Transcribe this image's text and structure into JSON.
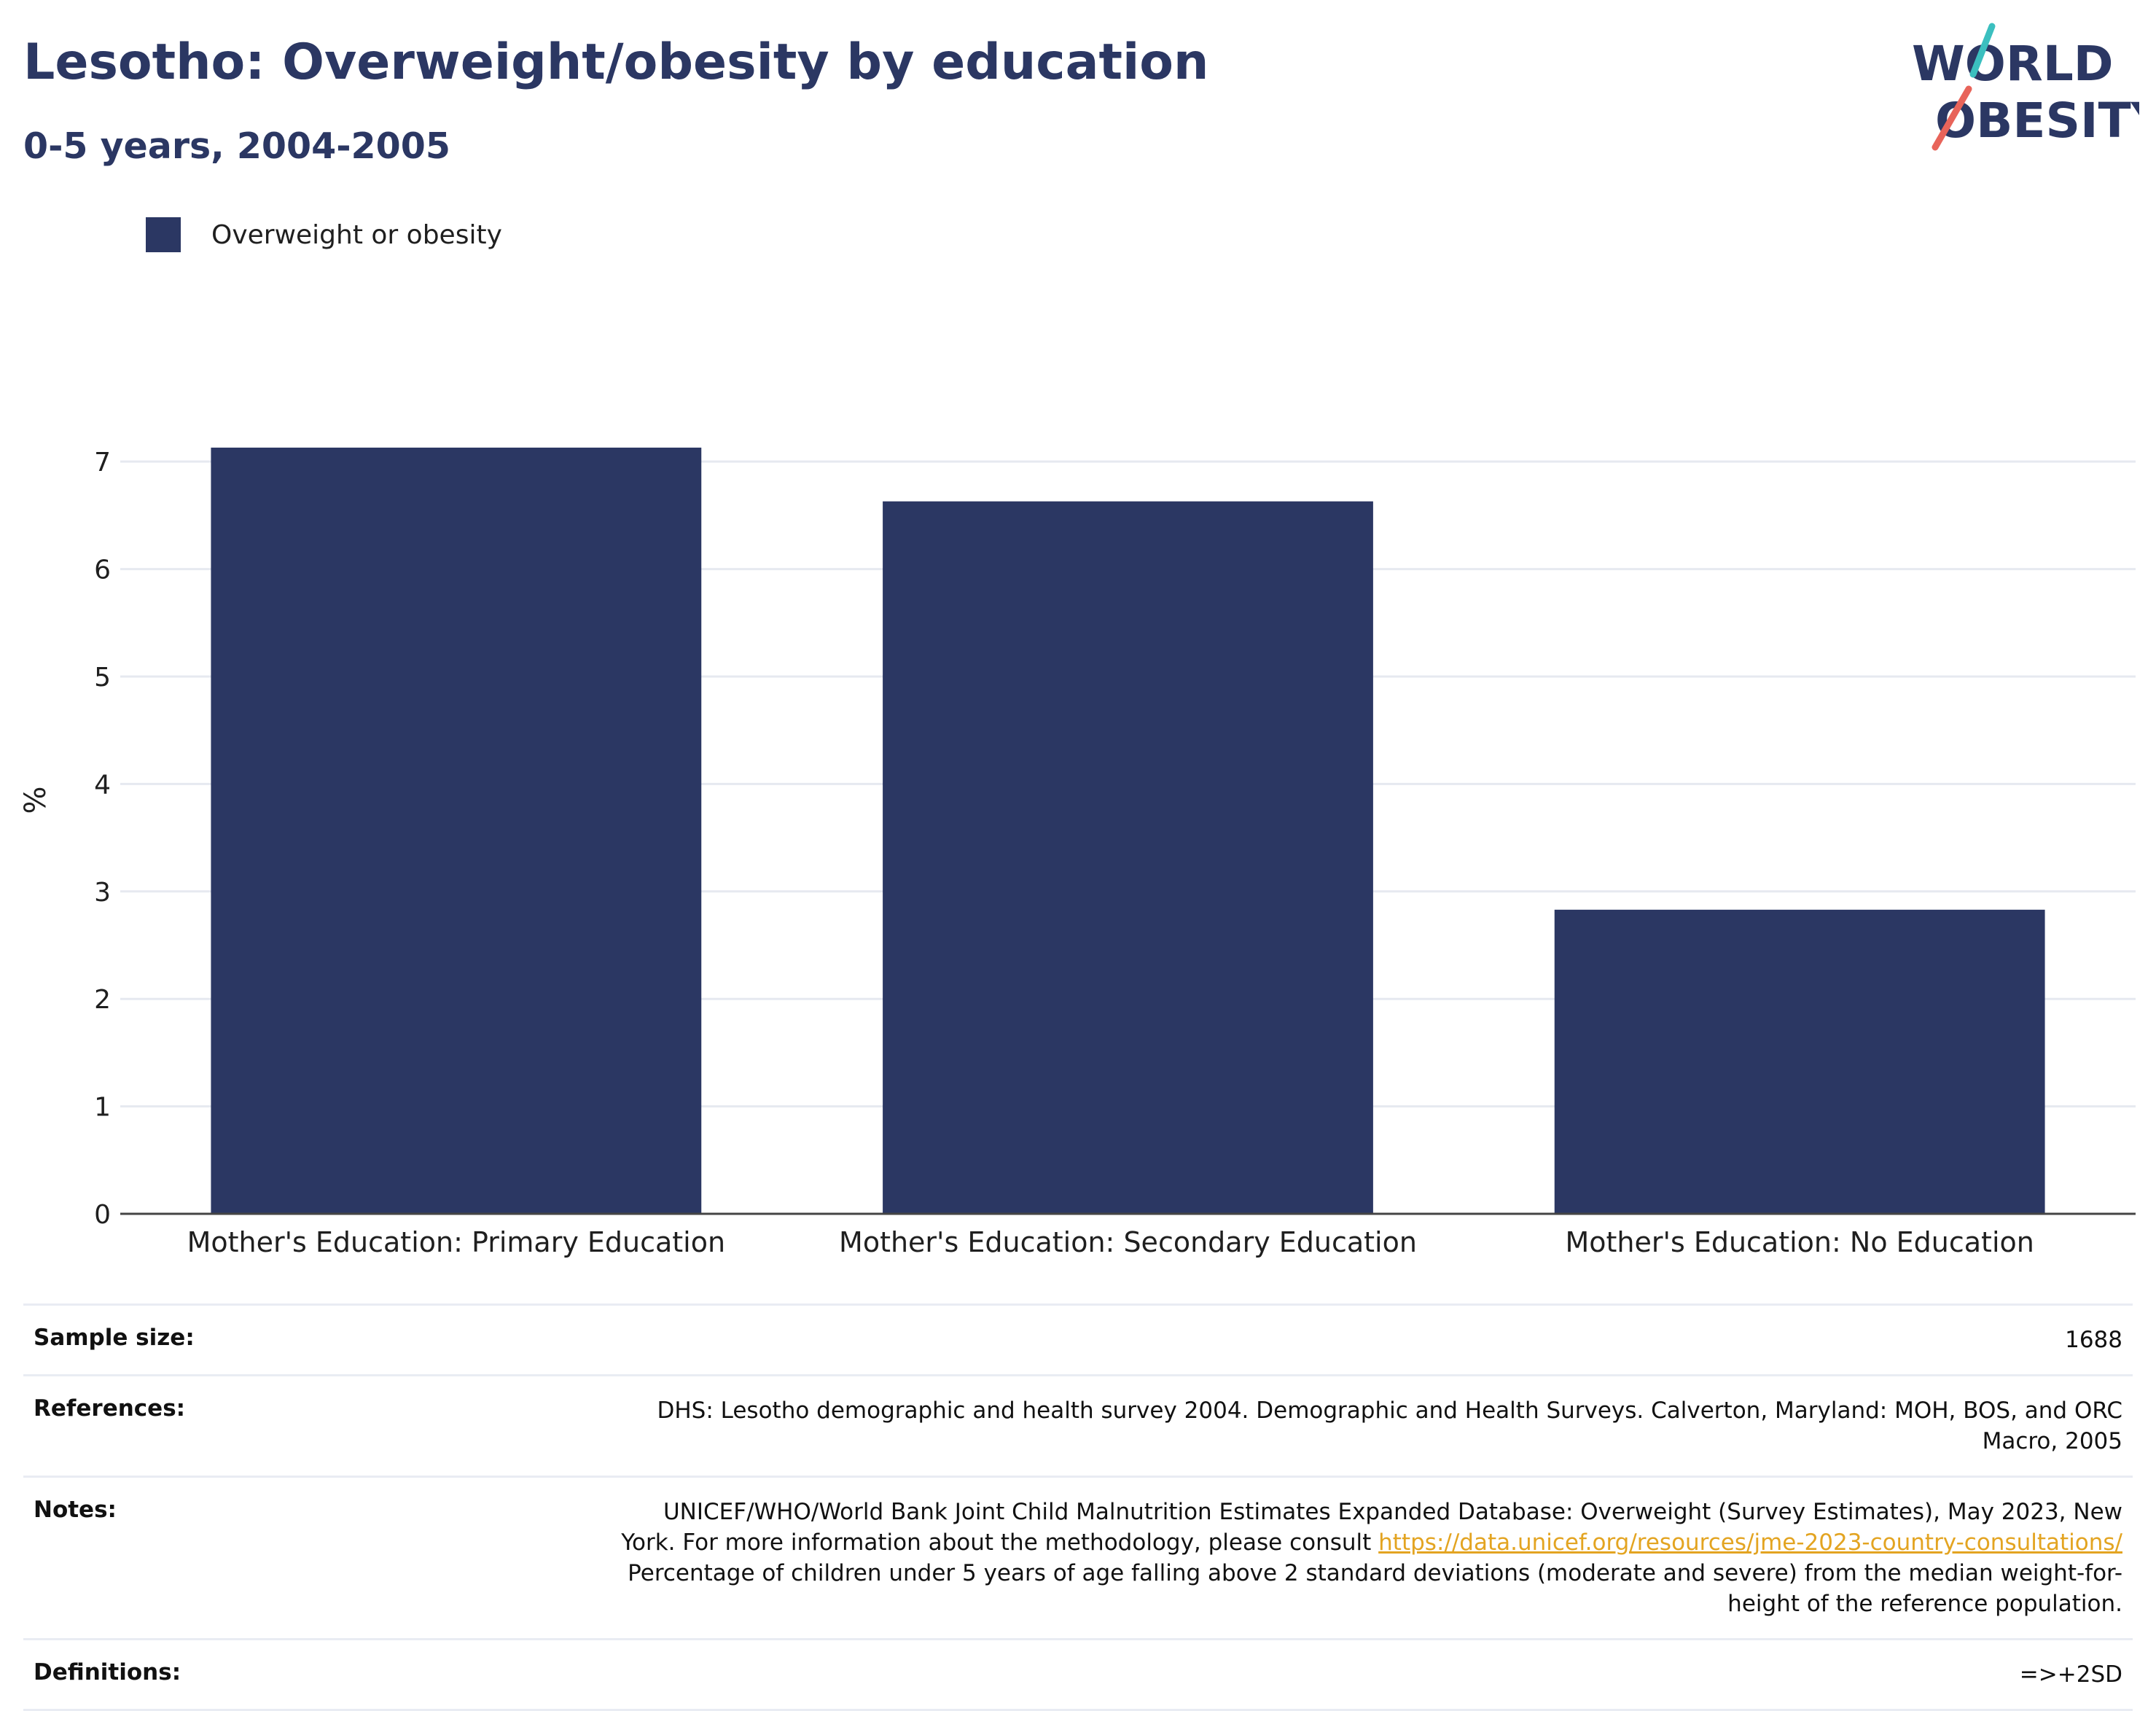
{
  "header": {
    "title": "Lesotho: Overweight/obesity by education",
    "subtitle": "0-5 years, 2004-2005"
  },
  "logo": {
    "line1": "WORLD",
    "line2": "OBESITY",
    "colors": {
      "text": "#2b3763",
      "slash_top": "#3bbfbf",
      "slash_bottom": "#e8645a"
    }
  },
  "legend": {
    "label": "Overweight or obesity",
    "color": "#2b3763"
  },
  "chart_data": {
    "type": "bar",
    "categories": [
      "Mother's Education: Primary Education",
      "Mother's Education: Secondary Education",
      "Mother's Education: No Education"
    ],
    "series": [
      {
        "name": "Overweight or obesity",
        "values": [
          7.13,
          6.63,
          2.83
        ],
        "color": "#2b3763"
      }
    ],
    "ylabel": "%",
    "ylim": [
      0,
      7.7
    ],
    "yticks": [
      0,
      1,
      2,
      3,
      4,
      5,
      6,
      7
    ],
    "grid": true,
    "legend_position": "top-left"
  },
  "info": {
    "sample_size": {
      "label": "Sample size:",
      "value": "1688"
    },
    "references": {
      "label": "References:",
      "value_line1": "DHS: Lesotho demographic and health survey 2004. Demographic and Health Surveys. Calverton, Maryland: MOH, BOS, and ORC",
      "value_line2": "Macro, 2005"
    },
    "notes": {
      "label": "Notes:",
      "line1": "UNICEF/WHO/World Bank Joint Child Malnutrition Estimates Expanded Database: Overweight (Survey Estimates), May 2023, New",
      "line2_prefix": "York. For more information about the methodology, please consult ",
      "link": "https://data.unicef.org/resources/jme-2023-country-consultations/",
      "line3": "Percentage of children under 5 years of age falling above 2 standard deviations (moderate and severe) from the median weight-for-",
      "line4": "height of the reference population."
    },
    "definitions": {
      "label": "Definitions:",
      "value": "=>+2SD"
    }
  }
}
